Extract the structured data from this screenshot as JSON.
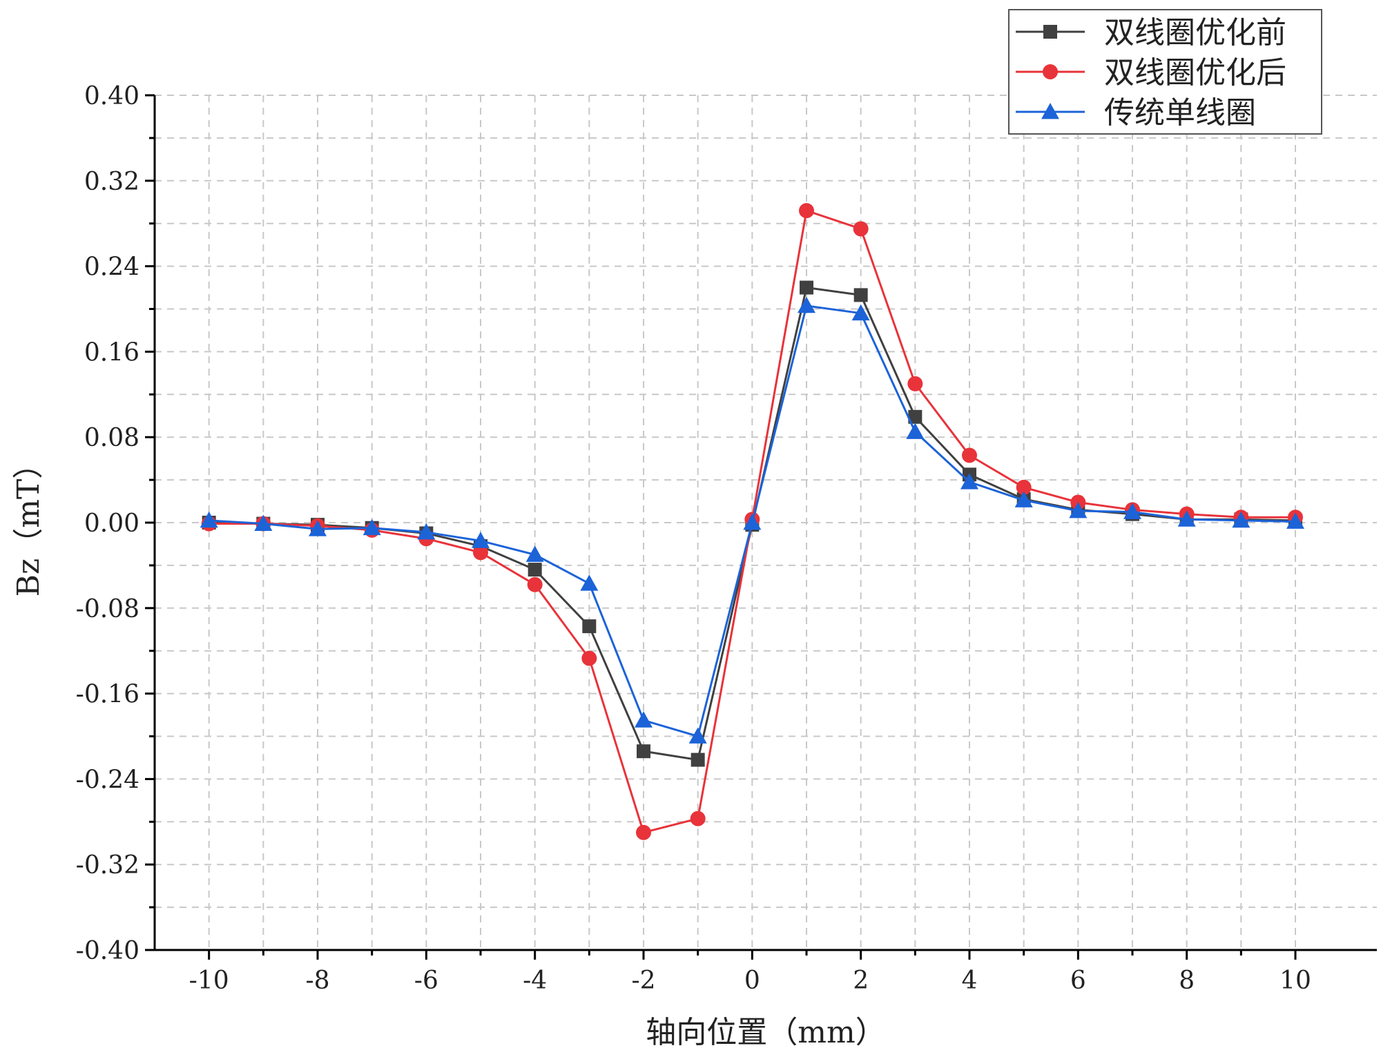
{
  "chart_data": {
    "type": "line",
    "xlabel": "轴向位置（mm）",
    "ylabel": "Bz（mT）",
    "xlim": [
      -11,
      11.5
    ],
    "ylim": [
      -0.4,
      0.4
    ],
    "x_ticks": [
      -10,
      -8,
      -6,
      -4,
      -2,
      0,
      2,
      4,
      6,
      8,
      10
    ],
    "x_tick_labels": [
      "-10",
      "-8",
      "-6",
      "-4",
      "-2",
      "0",
      "2",
      "4",
      "6",
      "8",
      "10"
    ],
    "y_ticks": [
      -0.4,
      -0.32,
      -0.24,
      -0.16,
      -0.08,
      0.0,
      0.08,
      0.16,
      0.24,
      0.32,
      0.4
    ],
    "y_tick_labels": [
      "-0.40",
      "-0.32",
      "-0.24",
      "-0.16",
      "-0.08",
      "0.00",
      "0.08",
      "0.16",
      "0.24",
      "0.32",
      "0.40"
    ],
    "grid": true,
    "legend_position": "top-right",
    "x": [
      -10,
      -9,
      -8,
      -7,
      -6,
      -5,
      -4,
      -3,
      -2,
      -1,
      0,
      1,
      2,
      3,
      4,
      5,
      6,
      7,
      8,
      9,
      10
    ],
    "series": [
      {
        "name": "双线圈优化前",
        "color": "#404040",
        "marker": "square",
        "values": [
          0.0,
          -0.001,
          -0.002,
          -0.005,
          -0.01,
          -0.022,
          -0.044,
          -0.097,
          -0.214,
          -0.222,
          -0.002,
          0.22,
          0.213,
          0.099,
          0.045,
          0.022,
          0.012,
          0.008,
          0.003,
          0.003,
          0.002
        ]
      },
      {
        "name": "双线圈优化后",
        "color": "#e8333a",
        "marker": "circle",
        "values": [
          -0.001,
          -0.001,
          -0.003,
          -0.007,
          -0.015,
          -0.028,
          -0.058,
          -0.127,
          -0.29,
          -0.277,
          0.003,
          0.292,
          0.275,
          0.13,
          0.063,
          0.033,
          0.019,
          0.012,
          0.008,
          0.005,
          0.005
        ]
      },
      {
        "name": "传统单线圈",
        "color": "#1c63d8",
        "marker": "triangle",
        "values": [
          0.002,
          -0.001,
          -0.006,
          -0.005,
          -0.009,
          -0.017,
          -0.03,
          -0.057,
          -0.185,
          -0.2,
          0.0,
          0.203,
          0.196,
          0.085,
          0.038,
          0.021,
          0.011,
          0.01,
          0.003,
          0.002,
          0.001
        ]
      }
    ]
  }
}
